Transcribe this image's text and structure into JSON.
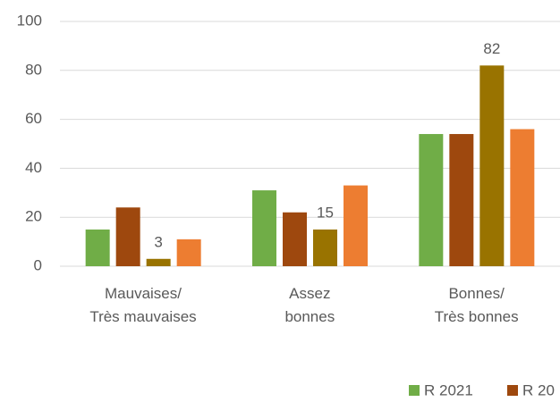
{
  "chart_data": {
    "type": "bar",
    "categories": [
      "Mauvaises/\nTrès mauvaises",
      "Assez\nbonnes",
      "Bonnes/\nTrès bonnes"
    ],
    "series": [
      {
        "name": "R 2021",
        "color": "#70ad47",
        "values": [
          15,
          31,
          54
        ]
      },
      {
        "name": "R 20",
        "color": "#9e480e",
        "values": [
          24,
          22,
          54
        ]
      },
      {
        "color": "#997300",
        "values": [
          3,
          15,
          82
        ],
        "data_labels": true
      },
      {
        "color": "#ed7d31",
        "values": [
          11,
          33,
          56
        ]
      }
    ],
    "ylim": [
      0,
      100
    ],
    "yticks": [
      0,
      20,
      40,
      60,
      80,
      100
    ],
    "grid": true
  }
}
